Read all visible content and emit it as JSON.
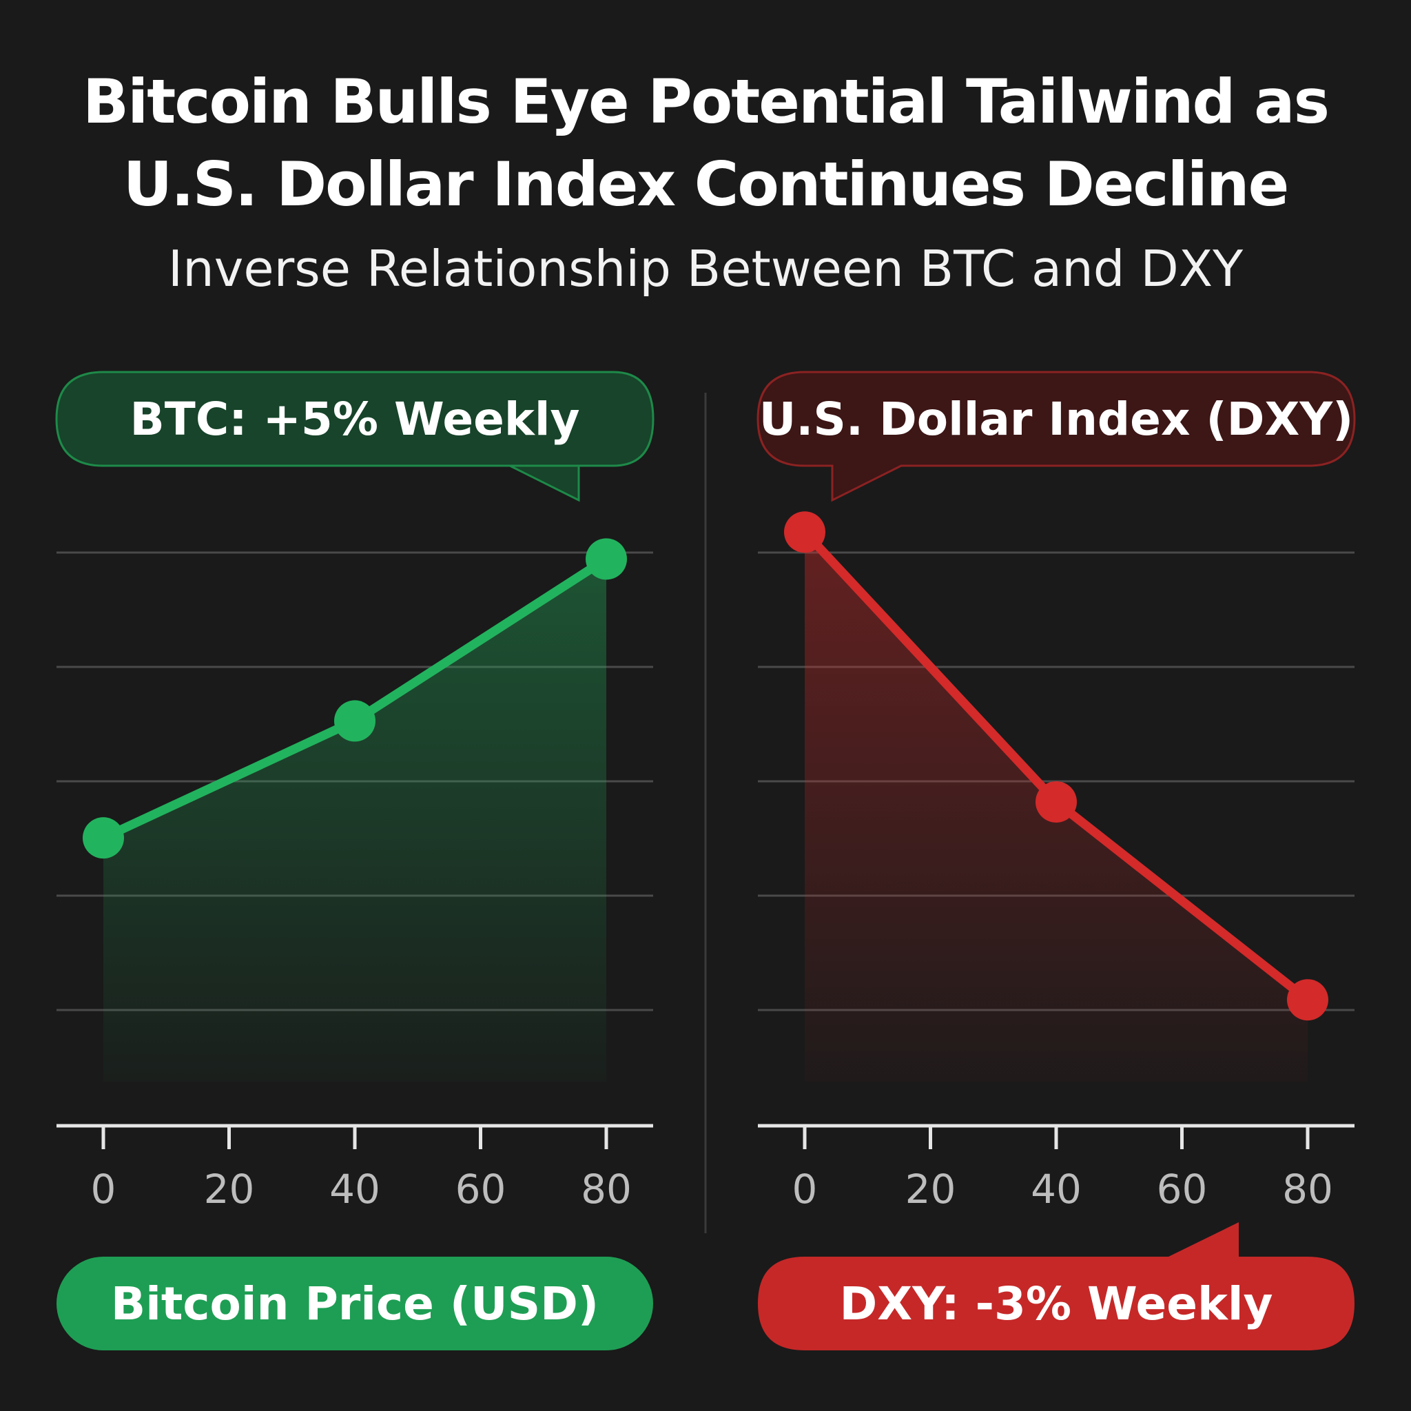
{
  "headline": {
    "line1": "Bitcoin Bulls Eye Potential Tailwind as",
    "line2": "U.S. Dollar Index Continues Decline"
  },
  "subtitle": "Inverse Relationship Between BTC and DXY",
  "colors": {
    "background": "#1a1a1a",
    "btc_green": "#22b35e",
    "dxy_red": "#d42a2a"
  },
  "chart_data": [
    {
      "type": "line",
      "top_label": "BTC: +5% Weekly",
      "bottom_label": "Bitcoin Price (USD)",
      "x": [
        0,
        40,
        80
      ],
      "xticks": [
        "0",
        "20",
        "40",
        "60",
        "80"
      ],
      "xlim": [
        0,
        80
      ],
      "series": [
        {
          "values": [
            3.2,
            4.5,
            6.3
          ]
        }
      ],
      "ylim": [
        0,
        7
      ],
      "grid": true,
      "area_fill": true,
      "color": "#22b35e"
    },
    {
      "type": "line",
      "top_label": "U.S. Dollar Index (DXY)",
      "bottom_label": "DXY: -3% Weekly",
      "x": [
        0,
        40,
        80
      ],
      "xticks": [
        "0",
        "20",
        "40",
        "60",
        "80"
      ],
      "xlim": [
        0,
        80
      ],
      "series": [
        {
          "values": [
            6.6,
            3.6,
            1.4
          ]
        }
      ],
      "ylim": [
        0,
        7
      ],
      "grid": true,
      "area_fill": true,
      "color": "#d42a2a"
    }
  ]
}
